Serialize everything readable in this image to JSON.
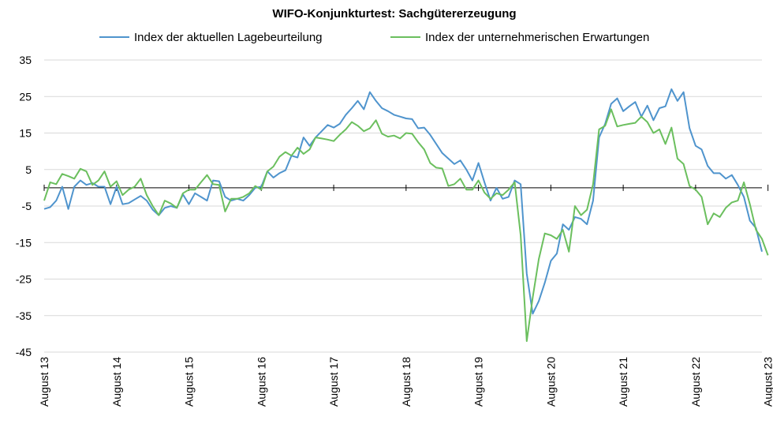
{
  "chart_data": {
    "type": "line",
    "title": "WIFO-Konjunkturtest: Sachgütererzeugung",
    "xlabel": "",
    "ylabel": "",
    "ylim": [
      -45,
      35
    ],
    "yticks": [
      35,
      25,
      15,
      5,
      -5,
      -15,
      -25,
      -35,
      -45
    ],
    "grid": true,
    "legend": "top",
    "x_start": "2013-08",
    "x_end": "2023-08",
    "x_tick_labels": [
      "August 13",
      "August 14",
      "August 15",
      "August 16",
      "August 17",
      "August 18",
      "August 19",
      "August 20",
      "August 21",
      "August 22",
      "August 23"
    ],
    "series": [
      {
        "name": "Index der aktuellen Lagebeurteilung",
        "color": "#4f94cd",
        "values": [
          -5.8,
          -5.3,
          -3.5,
          0.3,
          -5.8,
          0.3,
          2.0,
          0.8,
          1.3,
          0.3,
          0.3,
          -4.5,
          0.3,
          -4.5,
          -4.2,
          -3.2,
          -2.2,
          -3.5,
          -6.0,
          -7.5,
          -5.5,
          -5.0,
          -5.5,
          -1.8,
          -4.5,
          -1.5,
          -2.5,
          -3.5,
          2.0,
          1.8,
          -2.5,
          -3.5,
          -3.0,
          -3.5,
          -2.0,
          0.0,
          0.3,
          4.5,
          2.8,
          4.0,
          4.8,
          8.8,
          8.3,
          13.8,
          11.5,
          13.8,
          15.5,
          17.2,
          16.5,
          17.5,
          20.0,
          21.8,
          23.8,
          21.5,
          26.2,
          23.8,
          21.8,
          21.0,
          20.0,
          19.5,
          19.0,
          18.8,
          16.3,
          16.5,
          14.5,
          12.0,
          9.5,
          8.0,
          6.5,
          7.5,
          5.0,
          2.0,
          6.8,
          1.5,
          -3.5,
          0.0,
          -3.0,
          -2.5,
          2.0,
          1.0,
          -23.5,
          -34.5,
          -31.0,
          -26.0,
          -20.0,
          -18.0,
          -10.0,
          -11.5,
          -8.0,
          -8.5,
          -10.0,
          -3.5,
          13.8,
          17.5,
          23.0,
          24.5,
          21.0,
          22.3,
          23.5,
          19.5,
          22.5,
          18.5,
          21.8,
          22.3,
          27.0,
          23.8,
          26.2,
          16.3,
          11.5,
          10.5,
          6.0,
          4.0,
          4.0,
          2.5,
          3.5,
          0.8,
          -2.5,
          -9.0,
          -11.0,
          -17.5
        ]
      },
      {
        "name": "Index der unternehmerischen Erwartungen",
        "color": "#6bbf5e",
        "values": [
          -3.5,
          1.5,
          1.0,
          3.8,
          3.2,
          2.5,
          5.2,
          4.5,
          0.8,
          2.0,
          4.5,
          0.3,
          1.8,
          -2.0,
          -0.5,
          0.3,
          2.5,
          -2.0,
          -5.0,
          -7.5,
          -3.5,
          -4.3,
          -5.5,
          -1.5,
          -0.5,
          -0.5,
          1.5,
          3.5,
          1.0,
          0.8,
          -6.5,
          -3.0,
          -3.0,
          -2.5,
          -1.5,
          0.5,
          -0.5,
          4.5,
          5.8,
          8.5,
          9.8,
          8.8,
          11.0,
          9.3,
          10.5,
          13.8,
          13.5,
          13.2,
          12.8,
          14.5,
          16.0,
          18.0,
          17.0,
          15.5,
          16.3,
          18.5,
          14.8,
          14.0,
          14.3,
          13.5,
          15.0,
          14.8,
          12.5,
          10.5,
          6.8,
          5.5,
          5.3,
          0.5,
          1.0,
          2.5,
          -0.5,
          -0.5,
          2.0,
          -1.3,
          -3.0,
          -1.5,
          -2.0,
          -0.5,
          1.5,
          -13.0,
          -42.0,
          -30.0,
          -19.5,
          -12.5,
          -13.0,
          -14.0,
          -11.5,
          -17.5,
          -5.0,
          -7.5,
          -6.0,
          1.0,
          16.0,
          17.0,
          21.5,
          16.8,
          17.2,
          17.5,
          17.8,
          19.5,
          18.0,
          15.0,
          16.0,
          12.0,
          16.5,
          8.0,
          6.5,
          0.5,
          -0.5,
          -2.5,
          -10.0,
          -7.0,
          -8.0,
          -5.5,
          -4.0,
          -3.5,
          1.5,
          -4.5,
          -11.5,
          -14.0,
          -18.5
        ]
      }
    ]
  }
}
